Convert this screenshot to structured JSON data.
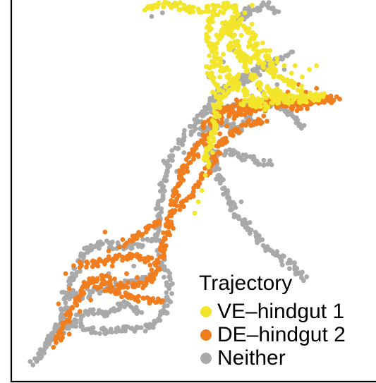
{
  "chart_data": {
    "type": "scatter",
    "title": "",
    "xlabel": "",
    "ylabel": "",
    "grid": false,
    "axes_visible": [
      "left",
      "bottom"
    ],
    "legend": {
      "title": "Trajectory",
      "placement": "bottom-right",
      "entries": [
        {
          "label": "VE–hindgut 1",
          "color": "#f2e52b"
        },
        {
          "label": "DE–hindgut 2",
          "color": "#f07d1e"
        },
        {
          "label": "Neither",
          "color": "#a9a9a9"
        }
      ]
    },
    "xlim": [
      0,
      100
    ],
    "ylim": [
      0,
      100
    ],
    "series": [
      {
        "name": "Neither",
        "color": "#a9a9a9",
        "segments": [
          [
            [
              5,
              4
            ],
            [
              9,
              10
            ],
            [
              13,
              17
            ],
            [
              16,
              26
            ],
            [
              19,
              34
            ],
            [
              24,
              36
            ],
            [
              31,
              35
            ],
            [
              39,
              37
            ],
            [
              40,
              45
            ],
            [
              42,
              57
            ],
            [
              47,
              64
            ],
            [
              52,
              70
            ],
            [
              56,
              76
            ],
            [
              62,
              79
            ],
            [
              67,
              82
            ],
            [
              72,
              84
            ],
            [
              77,
              86
            ]
          ],
          [
            [
              9,
              10
            ],
            [
              15,
              15
            ],
            [
              22,
              13
            ],
            [
              30,
              13
            ],
            [
              38,
              14
            ],
            [
              42,
              18
            ],
            [
              43,
              25
            ],
            [
              41,
              32
            ],
            [
              40,
              37
            ]
          ],
          [
            [
              13,
              23
            ],
            [
              18,
              22
            ],
            [
              24,
              24
            ],
            [
              29,
              25
            ],
            [
              34,
              26
            ],
            [
              38,
              27
            ]
          ],
          [
            [
              53,
              71
            ],
            [
              60,
              72
            ],
            [
              66,
              73
            ],
            [
              72,
              73
            ],
            [
              77,
              70
            ],
            [
              80,
              67
            ]
          ],
          [
            [
              52,
              65
            ],
            [
              56,
              56
            ],
            [
              60,
              46
            ],
            [
              65,
              40
            ],
            [
              71,
              34
            ],
            [
              77,
              30
            ],
            [
              81,
              27
            ]
          ],
          [
            [
              55,
              60
            ],
            [
              61,
              60
            ],
            [
              66,
              58
            ],
            [
              71,
              57
            ]
          ],
          [
            [
              56,
              74
            ],
            [
              60,
              77
            ],
            [
              64,
              79
            ],
            [
              68,
              81
            ]
          ],
          [
            [
              58,
              92
            ],
            [
              62,
              95
            ],
            [
              65,
              98
            ],
            [
              64,
              96
            ],
            [
              70,
              99
            ],
            [
              73,
              97
            ]
          ],
          [
            [
              16,
              16
            ],
            [
              20,
              18
            ],
            [
              25,
              17
            ],
            [
              30,
              20
            ],
            [
              35,
              18
            ]
          ],
          [
            [
              50,
              68
            ],
            [
              54,
              66
            ],
            [
              58,
              68
            ],
            [
              62,
              66
            ],
            [
              66,
              70
            ]
          ]
        ],
        "points": [
          [
            6,
            5
          ],
          [
            8,
            7
          ],
          [
            10,
            12
          ],
          [
            12,
            14
          ],
          [
            14,
            19
          ],
          [
            17,
            20
          ],
          [
            20,
            24
          ],
          [
            26,
            28
          ],
          [
            33,
            30
          ],
          [
            36,
            32
          ],
          [
            44,
            50
          ],
          [
            45,
            55
          ],
          [
            47,
            60
          ],
          [
            50,
            62
          ],
          [
            53,
            58
          ],
          [
            56,
            53
          ],
          [
            58,
            49
          ],
          [
            61,
            43
          ],
          [
            63,
            47
          ],
          [
            68,
            38
          ],
          [
            74,
            32
          ],
          [
            79,
            28
          ],
          [
            57,
            63
          ],
          [
            60,
            66
          ],
          [
            63,
            70
          ],
          [
            66,
            75
          ],
          [
            69,
            76
          ],
          [
            73,
            78
          ],
          [
            75,
            82
          ],
          [
            54,
            80
          ],
          [
            58,
            84
          ],
          [
            61,
            87
          ],
          [
            38,
            96
          ],
          [
            41,
            97
          ],
          [
            44,
            99
          ]
        ]
      },
      {
        "name": "DE–hindgut 2",
        "color": "#f07d1e",
        "segments": [
          [
            [
              11,
              9
            ],
            [
              14,
              15
            ],
            [
              17,
              21
            ],
            [
              20,
              26
            ],
            [
              24,
              27
            ],
            [
              30,
              25
            ],
            [
              36,
              25
            ],
            [
              39,
              28
            ],
            [
              41,
              34
            ],
            [
              43,
              42
            ],
            [
              45,
              50
            ],
            [
              47,
              56
            ],
            [
              50,
              60
            ],
            [
              53,
              64
            ],
            [
              56,
              68
            ],
            [
              60,
              70
            ],
            [
              65,
              71
            ],
            [
              70,
              72
            ],
            [
              75,
              73
            ],
            [
              80,
              74
            ],
            [
              86,
              74
            ],
            [
              90,
              74
            ]
          ],
          [
            [
              20,
              26
            ],
            [
              26,
              24
            ],
            [
              32,
              22
            ],
            [
              37,
              21
            ],
            [
              41,
              21
            ]
          ],
          [
            [
              17,
              30
            ],
            [
              22,
              31
            ],
            [
              28,
              32
            ],
            [
              33,
              33
            ],
            [
              38,
              31
            ]
          ],
          [
            [
              45,
              45
            ],
            [
              48,
              48
            ],
            [
              52,
              53
            ],
            [
              55,
              58
            ],
            [
              58,
              63
            ],
            [
              62,
              66
            ],
            [
              66,
              68
            ],
            [
              70,
              69
            ]
          ],
          [
            [
              52,
              66
            ],
            [
              56,
              70
            ],
            [
              60,
              72
            ],
            [
              63,
              74
            ]
          ],
          [
            [
              30,
              36
            ],
            [
              34,
              38
            ],
            [
              37,
              40
            ],
            [
              40,
              42
            ]
          ],
          [
            [
              57,
              71
            ],
            [
              62,
              71
            ],
            [
              66,
              73
            ],
            [
              72,
              74
            ],
            [
              78,
              72
            ],
            [
              84,
              73
            ]
          ]
        ],
        "points": [
          [
            12,
            11
          ],
          [
            15,
            12
          ],
          [
            18,
            18
          ],
          [
            21,
            21
          ],
          [
            23,
            30
          ],
          [
            27,
            30
          ],
          [
            31,
            28
          ],
          [
            34,
            27
          ],
          [
            38,
            29
          ],
          [
            44,
            47
          ],
          [
            46,
            52
          ],
          [
            48,
            55
          ],
          [
            51,
            59
          ],
          [
            54,
            62
          ],
          [
            57,
            65
          ],
          [
            59,
            67
          ],
          [
            61,
            69
          ],
          [
            64,
            70
          ],
          [
            67,
            71
          ],
          [
            73,
            72
          ],
          [
            77,
            74
          ],
          [
            82,
            74
          ],
          [
            88,
            75
          ],
          [
            81,
            76
          ],
          [
            84,
            77
          ],
          [
            79,
            78
          ],
          [
            76,
            76
          ],
          [
            71,
            76
          ],
          [
            68,
            77
          ],
          [
            26,
            34
          ],
          [
            29,
            35
          ],
          [
            33,
            37
          ],
          [
            12,
            20
          ],
          [
            15,
            24
          ],
          [
            14,
            28
          ],
          [
            25,
            39
          ],
          [
            42,
            41
          ],
          [
            44,
            40
          ]
        ]
      },
      {
        "name": "VE–hindgut 1",
        "color": "#f2e52b",
        "segments": [
          [
            [
              36,
              98
            ],
            [
              40,
              99
            ],
            [
              45,
              99
            ],
            [
              49,
              98
            ],
            [
              53,
              98
            ],
            [
              56,
              98
            ],
            [
              59,
              99
            ],
            [
              61,
              98
            ],
            [
              62,
              97
            ],
            [
              60,
              94
            ],
            [
              57,
              91
            ],
            [
              55,
              88
            ],
            [
              56,
              85
            ],
            [
              58,
              82
            ],
            [
              61,
              78
            ],
            [
              64,
              76
            ],
            [
              66,
              73
            ],
            [
              70,
              72
            ],
            [
              75,
              74
            ],
            [
              80,
              74
            ],
            [
              86,
              75
            ]
          ],
          [
            [
              56,
              98
            ],
            [
              54,
              94
            ],
            [
              54,
              90
            ],
            [
              55,
              86
            ],
            [
              54,
              82
            ],
            [
              56,
              78
            ],
            [
              57,
              74
            ],
            [
              56,
              70
            ],
            [
              55,
              66
            ],
            [
              54,
              61
            ],
            [
              53,
              57
            ]
          ],
          [
            [
              58,
              95
            ],
            [
              60,
              91
            ],
            [
              62,
              88
            ],
            [
              64,
              84
            ],
            [
              66,
              80
            ],
            [
              68,
              78
            ],
            [
              71,
              76
            ],
            [
              74,
              76
            ]
          ],
          [
            [
              59,
              88
            ],
            [
              62,
              86
            ],
            [
              65,
              85
            ],
            [
              68,
              84
            ],
            [
              71,
              82
            ],
            [
              74,
              80
            ],
            [
              77,
              78
            ],
            [
              80,
              77
            ]
          ],
          [
            [
              57,
              92
            ],
            [
              60,
              93
            ],
            [
              63,
              95
            ],
            [
              65,
              92
            ],
            [
              67,
              88
            ],
            [
              70,
              85
            ],
            [
              72,
              82
            ]
          ],
          [
            [
              56,
              72
            ],
            [
              58,
              75
            ],
            [
              60,
              78
            ],
            [
              63,
              80
            ]
          ],
          [
            [
              63,
              73
            ],
            [
              68,
              74
            ],
            [
              73,
              75
            ],
            [
              78,
              75
            ],
            [
              82,
              75
            ],
            [
              86,
              75
            ]
          ]
        ],
        "points": [
          [
            38,
            98
          ],
          [
            43,
            99
          ],
          [
            47,
            99
          ],
          [
            51,
            98
          ],
          [
            55,
            99
          ],
          [
            58,
            97
          ],
          [
            61,
            95
          ],
          [
            63,
            91
          ],
          [
            65,
            88
          ],
          [
            67,
            86
          ],
          [
            69,
            83
          ],
          [
            72,
            80
          ],
          [
            75,
            79
          ],
          [
            77,
            79
          ],
          [
            80,
            80
          ],
          [
            82,
            82
          ],
          [
            84,
            83
          ],
          [
            78,
            83
          ],
          [
            73,
            85
          ],
          [
            70,
            87
          ],
          [
            55,
            60
          ],
          [
            54,
            57
          ],
          [
            53,
            54
          ],
          [
            52,
            50
          ],
          [
            51,
            47
          ],
          [
            50,
            44
          ],
          [
            55,
            76
          ],
          [
            57,
            80
          ],
          [
            58,
            86
          ],
          [
            60,
            89
          ],
          [
            62,
            93
          ],
          [
            64,
            97
          ],
          [
            66,
            99
          ],
          [
            66,
            94
          ],
          [
            67,
            91
          ],
          [
            69,
            89
          ],
          [
            71,
            87
          ],
          [
            73,
            84
          ],
          [
            75,
            83
          ],
          [
            77,
            81
          ]
        ]
      }
    ]
  }
}
